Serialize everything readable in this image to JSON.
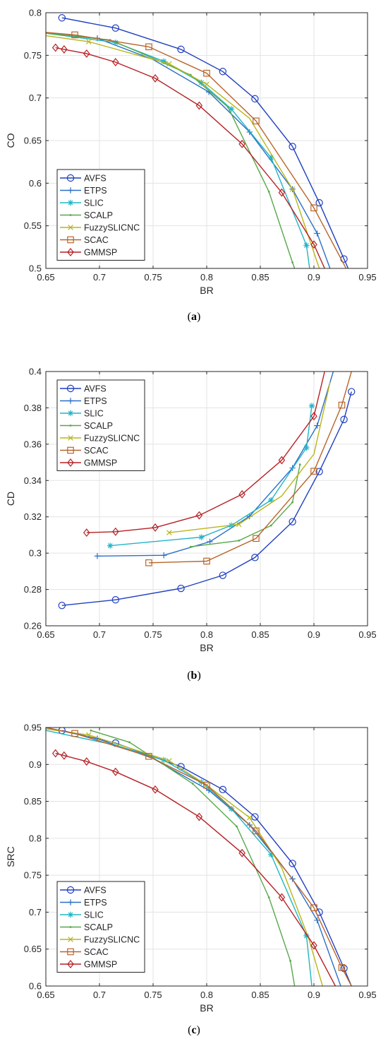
{
  "colors": {
    "AVFS": "#1f3fbf",
    "ETPS": "#2a6fc9",
    "SLIC": "#21b5c6",
    "SCALP": "#57a84a",
    "FuzzySLICNC": "#b9b51b",
    "SCAC": "#b8652a",
    "GMMSP": "#b62025"
  },
  "chart_data": [
    {
      "type": "line",
      "panel_label": "a",
      "xlabel": "BR",
      "ylabel": "CO",
      "xlim": [
        0.65,
        0.95
      ],
      "ylim": [
        0.5,
        0.8
      ],
      "xticks": [
        "0.65",
        "0.7",
        "0.75",
        "0.8",
        "0.85",
        "0.9",
        "0.95"
      ],
      "yticks": [
        "0.5",
        "0.55",
        "0.6",
        "0.65",
        "0.7",
        "0.75",
        "0.8"
      ],
      "grid": true,
      "legend": "bottom-left",
      "series": [
        {
          "name": "AVFS",
          "marker": "circle",
          "x": [
            0.665,
            0.715,
            0.776,
            0.815,
            0.845,
            0.88,
            0.905,
            0.928,
            0.932
          ],
          "y": [
            0.794,
            0.782,
            0.757,
            0.731,
            0.699,
            0.643,
            0.577,
            0.511,
            0.5
          ],
          "marks": [
            0,
            1,
            2,
            3,
            4,
            5,
            6,
            7
          ]
        },
        {
          "name": "ETPS",
          "marker": "plus",
          "x": [
            0.65,
            0.698,
            0.75,
            0.802,
            0.84,
            0.88,
            0.903,
            0.915
          ],
          "y": [
            0.776,
            0.77,
            0.745,
            0.707,
            0.66,
            0.593,
            0.541,
            0.5
          ],
          "marks": [
            1,
            3,
            4,
            5,
            6
          ]
        },
        {
          "name": "SLIC",
          "marker": "asterisk",
          "x": [
            0.65,
            0.715,
            0.76,
            0.795,
            0.823,
            0.86,
            0.893,
            0.896
          ],
          "y": [
            0.776,
            0.765,
            0.743,
            0.718,
            0.687,
            0.63,
            0.527,
            0.5
          ],
          "marks": [
            1,
            2,
            3,
            4,
            5,
            6
          ]
        },
        {
          "name": "SCALP",
          "marker": "dot",
          "x": [
            0.65,
            0.71,
            0.74,
            0.785,
            0.82,
            0.858,
            0.88,
            0.882
          ],
          "y": [
            0.776,
            0.768,
            0.752,
            0.727,
            0.689,
            0.59,
            0.507,
            0.5
          ],
          "marks": [
            1,
            2,
            3,
            4,
            5,
            6
          ]
        },
        {
          "name": "FuzzySLICNC",
          "marker": "cross",
          "x": [
            0.65,
            0.69,
            0.765,
            0.8,
            0.84,
            0.88,
            0.905
          ],
          "y": [
            0.773,
            0.766,
            0.74,
            0.716,
            0.676,
            0.593,
            0.5
          ],
          "marks": [
            1,
            2,
            3,
            5
          ]
        },
        {
          "name": "SCAC",
          "marker": "square",
          "x": [
            0.65,
            0.677,
            0.746,
            0.8,
            0.846,
            0.9,
            0.93
          ],
          "y": [
            0.777,
            0.774,
            0.76,
            0.729,
            0.673,
            0.571,
            0.5
          ],
          "marks": [
            1,
            2,
            3,
            4,
            5
          ]
        },
        {
          "name": "GMMSP",
          "marker": "diamond",
          "x": [
            0.659,
            0.667,
            0.688,
            0.715,
            0.752,
            0.793,
            0.833,
            0.87,
            0.9,
            0.91
          ],
          "y": [
            0.759,
            0.757,
            0.752,
            0.742,
            0.723,
            0.691,
            0.646,
            0.589,
            0.528,
            0.5
          ],
          "marks": [
            0,
            1,
            2,
            3,
            4,
            5,
            6,
            7,
            8
          ]
        }
      ]
    },
    {
      "type": "line",
      "panel_label": "b",
      "xlabel": "BR",
      "ylabel": "CD",
      "xlim": [
        0.65,
        0.95
      ],
      "ylim": [
        0.26,
        0.4
      ],
      "xticks": [
        "0.65",
        "0.7",
        "0.75",
        "0.8",
        "0.85",
        "0.9",
        "0.95"
      ],
      "yticks": [
        "0.26",
        "0.28",
        "0.3",
        "0.32",
        "0.34",
        "0.36",
        "0.38",
        "0.4"
      ],
      "grid": true,
      "legend": "top-left",
      "series": [
        {
          "name": "AVFS",
          "marker": "circle",
          "x": [
            0.665,
            0.715,
            0.776,
            0.815,
            0.845,
            0.88,
            0.905,
            0.928,
            0.935
          ],
          "y": [
            0.2712,
            0.2743,
            0.2806,
            0.2878,
            0.2976,
            0.3173,
            0.3449,
            0.3736,
            0.3889
          ],
          "marks": [
            0,
            1,
            2,
            3,
            4,
            5,
            6,
            7,
            8
          ]
        },
        {
          "name": "ETPS",
          "marker": "plus",
          "x": [
            0.698,
            0.76,
            0.803,
            0.84,
            0.88,
            0.903,
            0.918
          ],
          "y": [
            0.2984,
            0.2988,
            0.3063,
            0.3203,
            0.3469,
            0.3702,
            0.4
          ],
          "marks": [
            0,
            1,
            2,
            3,
            4,
            5
          ]
        },
        {
          "name": "SLIC",
          "marker": "asterisk",
          "x": [
            0.71,
            0.795,
            0.823,
            0.86,
            0.893,
            0.898
          ],
          "y": [
            0.3041,
            0.3088,
            0.3153,
            0.3292,
            0.358,
            0.3811
          ],
          "marks": [
            0,
            1,
            2,
            3,
            4,
            5
          ]
        },
        {
          "name": "SCALP",
          "marker": "dot",
          "x": [
            0.785,
            0.83,
            0.86,
            0.88,
            0.887
          ],
          "y": [
            0.3035,
            0.3069,
            0.3152,
            0.328,
            0.3488
          ],
          "marks": [
            0,
            1,
            2,
            3,
            4
          ]
        },
        {
          "name": "FuzzySLICNC",
          "marker": "cross",
          "x": [
            0.765,
            0.83,
            0.87,
            0.9,
            0.915
          ],
          "y": [
            0.3113,
            0.3159,
            0.3315,
            0.3545,
            0.3941
          ],
          "marks": [
            0,
            1
          ]
        },
        {
          "name": "SCAC",
          "marker": "square",
          "x": [
            0.746,
            0.8,
            0.846,
            0.9,
            0.926,
            0.935
          ],
          "y": [
            0.2947,
            0.2956,
            0.3081,
            0.3451,
            0.3815,
            0.4
          ],
          "marks": [
            0,
            1,
            2,
            3,
            4
          ]
        },
        {
          "name": "GMMSP",
          "marker": "diamond",
          "x": [
            0.688,
            0.715,
            0.752,
            0.793,
            0.833,
            0.87,
            0.9,
            0.91
          ],
          "y": [
            0.3113,
            0.3118,
            0.3141,
            0.3208,
            0.3324,
            0.3512,
            0.3754,
            0.4
          ],
          "marks": [
            0,
            1,
            2,
            3,
            4,
            5,
            6
          ]
        }
      ]
    },
    {
      "type": "line",
      "panel_label": "c",
      "xlabel": "BR",
      "ylabel": "SRC",
      "xlim": [
        0.65,
        0.95
      ],
      "ylim": [
        0.6,
        0.95
      ],
      "xticks": [
        "0.65",
        "0.7",
        "0.75",
        "0.8",
        "0.85",
        "0.9",
        "0.95"
      ],
      "yticks": [
        "0.6",
        "0.65",
        "0.7",
        "0.75",
        "0.8",
        "0.85",
        "0.9",
        "0.95"
      ],
      "grid": true,
      "legend": "bottom-left",
      "series": [
        {
          "name": "AVFS",
          "marker": "circle",
          "x": [
            0.665,
            0.715,
            0.776,
            0.815,
            0.845,
            0.88,
            0.905,
            0.928,
            0.935
          ],
          "y": [
            0.946,
            0.929,
            0.897,
            0.866,
            0.829,
            0.766,
            0.7,
            0.624,
            0.6
          ],
          "marks": [
            0,
            1,
            2,
            3,
            4,
            5,
            6,
            7
          ]
        },
        {
          "name": "ETPS",
          "marker": "plus",
          "x": [
            0.65,
            0.698,
            0.75,
            0.802,
            0.84,
            0.88,
            0.903,
            0.925
          ],
          "y": [
            0.95,
            0.935,
            0.908,
            0.865,
            0.818,
            0.745,
            0.689,
            0.6
          ],
          "marks": [
            1,
            3,
            4,
            5,
            6
          ]
        },
        {
          "name": "SLIC",
          "marker": "asterisk",
          "x": [
            0.65,
            0.715,
            0.76,
            0.795,
            0.823,
            0.86,
            0.893,
            0.898
          ],
          "y": [
            0.946,
            0.926,
            0.906,
            0.876,
            0.84,
            0.778,
            0.668,
            0.6
          ],
          "marks": [
            2,
            3,
            4,
            5,
            6
          ]
        },
        {
          "name": "SCALP",
          "marker": "dot",
          "x": [
            0.692,
            0.728,
            0.787,
            0.828,
            0.858,
            0.878,
            0.882
          ],
          "y": [
            0.946,
            0.93,
            0.874,
            0.816,
            0.72,
            0.634,
            0.6
          ],
          "marks": [
            0,
            1,
            2,
            3,
            4,
            5
          ]
        },
        {
          "name": "FuzzySLICNC",
          "marker": "cross",
          "x": [
            0.65,
            0.69,
            0.765,
            0.8,
            0.84,
            0.87,
            0.895,
            0.908
          ],
          "y": [
            0.948,
            0.94,
            0.905,
            0.872,
            0.828,
            0.76,
            0.665,
            0.6
          ],
          "marks": [
            1,
            2,
            3,
            4
          ]
        },
        {
          "name": "SCAC",
          "marker": "square",
          "x": [
            0.65,
            0.677,
            0.746,
            0.8,
            0.846,
            0.9,
            0.926,
            0.935
          ],
          "y": [
            0.95,
            0.942,
            0.911,
            0.872,
            0.81,
            0.706,
            0.625,
            0.6
          ],
          "marks": [
            1,
            2,
            3,
            4,
            5,
            6
          ]
        },
        {
          "name": "GMMSP",
          "marker": "diamond",
          "x": [
            0.659,
            0.667,
            0.688,
            0.715,
            0.752,
            0.793,
            0.833,
            0.87,
            0.9,
            0.92
          ],
          "y": [
            0.915,
            0.912,
            0.904,
            0.89,
            0.866,
            0.829,
            0.78,
            0.72,
            0.655,
            0.6
          ],
          "marks": [
            0,
            1,
            2,
            3,
            4,
            5,
            6,
            7,
            8
          ]
        }
      ]
    }
  ]
}
